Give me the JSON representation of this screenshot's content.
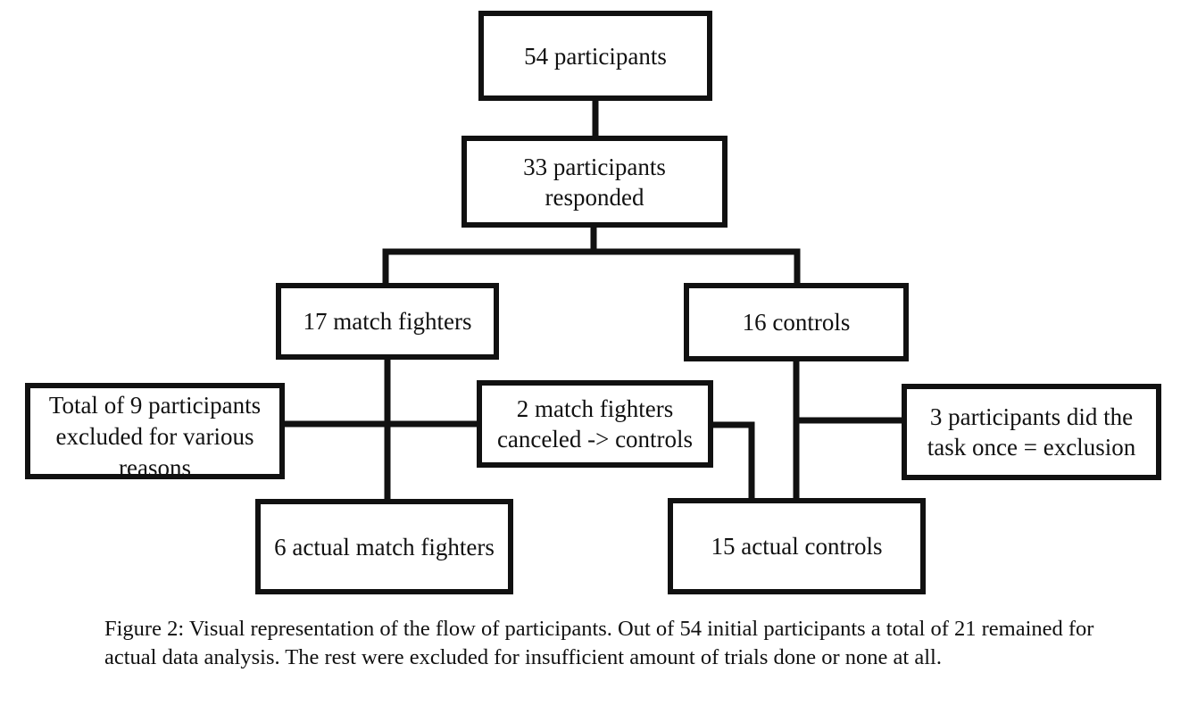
{
  "boxes": {
    "total": "54 participants",
    "responded": "33 participants\nresponded",
    "fighters": "17 match fighters",
    "controls": "16 controls",
    "excluded": "Total of 9 participants\nexcluded for various\nreasons",
    "canceled": "2 match fighters\ncanceled -> controls",
    "task_once": "3 participants did the\ntask once = exclusion",
    "actual_fighters": "6 actual match fighters",
    "actual_controls": "15 actual controls"
  },
  "caption": "Figure 2: Visual representation of the flow of participants. Out of 54 initial participants a total of 21 remained for actual data analysis. The rest were excluded for insufficient amount of trials done or none at all."
}
